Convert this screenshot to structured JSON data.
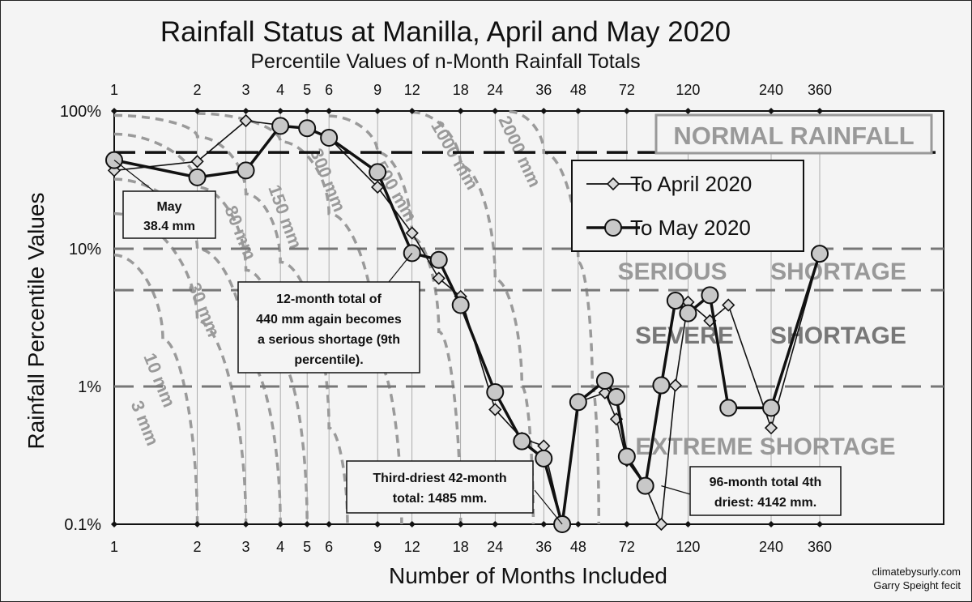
{
  "title": "Rainfall Status at Manilla, April and May 2020",
  "subtitle": "Percentile Values of n-Month Rainfall Totals",
  "credit": [
    "climatebysurly.com",
    "Garry Speight fecit"
  ],
  "colors": {
    "background": "#f4f4f4",
    "series": "#111111",
    "marker_fill": "#c8c8c8",
    "contour": "#9a9a9a",
    "band_line": "#777777",
    "band_text": "#999999",
    "normal_line": "#111111"
  },
  "chart_data": {
    "type": "line",
    "title": "Rainfall Status at Manilla, April and May 2020",
    "subtitle": "Percentile Values of n-Month Rainfall Totals",
    "xlabel": "Number of Months Included",
    "ylabel": "Rainfall Percentile Values",
    "x_scale": "log",
    "y_scale": "log",
    "xlim": [
      1,
      360
    ],
    "ylim": [
      0.1,
      100
    ],
    "x_ticks": [
      1,
      2,
      3,
      4,
      5,
      6,
      9,
      12,
      18,
      24,
      36,
      48,
      72,
      120,
      240,
      360
    ],
    "x_top_ticks": [
      1,
      2,
      3,
      4,
      5,
      6,
      9,
      12,
      18,
      24,
      36,
      48,
      72,
      120,
      240,
      360
    ],
    "y_ticks": [
      "0.1%",
      "1%",
      "10%",
      "100%"
    ],
    "y_tick_values": [
      0.1,
      1,
      10,
      100
    ],
    "grid": false,
    "legend_position": "top-right",
    "series": [
      {
        "name": "To April 2020",
        "marker": "diamond",
        "points": [
          [
            1,
            37
          ],
          [
            2,
            43
          ],
          [
            3,
            85
          ],
          [
            4,
            79
          ],
          [
            5,
            74
          ],
          [
            6,
            64
          ],
          [
            9,
            28
          ],
          [
            12,
            13
          ],
          [
            15,
            6.1
          ],
          [
            18,
            4.5
          ],
          [
            24,
            0.68
          ],
          [
            30,
            0.42
          ],
          [
            36,
            0.37
          ],
          [
            42,
            0.1
          ],
          [
            48,
            0.77
          ],
          [
            60,
            0.9
          ],
          [
            66,
            0.58
          ],
          [
            72,
            0.29
          ],
          [
            84,
            0.19
          ],
          [
            96,
            0.1
          ],
          [
            108,
            1.02
          ],
          [
            120,
            4.1
          ],
          [
            144,
            3.0
          ],
          [
            168,
            3.9
          ],
          [
            240,
            0.5
          ],
          [
            360,
            9.2
          ]
        ]
      },
      {
        "name": "To May 2020",
        "marker": "circle",
        "points": [
          [
            1,
            44
          ],
          [
            2,
            33
          ],
          [
            3,
            37
          ],
          [
            4,
            78
          ],
          [
            5,
            75
          ],
          [
            6,
            64
          ],
          [
            9,
            36
          ],
          [
            12,
            9.3
          ],
          [
            15,
            8.3
          ],
          [
            18,
            3.9
          ],
          [
            24,
            0.91
          ],
          [
            30,
            0.4
          ],
          [
            36,
            0.3
          ],
          [
            42,
            0.1
          ],
          [
            48,
            0.77
          ],
          [
            60,
            1.1
          ],
          [
            66,
            0.84
          ],
          [
            72,
            0.31
          ],
          [
            84,
            0.19
          ],
          [
            96,
            1.02
          ],
          [
            108,
            4.2
          ],
          [
            120,
            3.4
          ],
          [
            144,
            4.6
          ],
          [
            168,
            0.7
          ],
          [
            240,
            0.7
          ],
          [
            360,
            9.2
          ]
        ]
      }
    ],
    "reference_lines": [
      {
        "name": "normal",
        "y": 50,
        "label": "NORMAL RAINFALL"
      },
      {
        "name": "serious",
        "y": 10,
        "label": "SERIOUS      SHORTAGE"
      },
      {
        "name": "severe",
        "y": 5,
        "label": "SEVERE      SHORTAGE"
      },
      {
        "name": "extreme",
        "y": 1,
        "label": "EXTREME SHORTAGE"
      }
    ],
    "contours": [
      {
        "label": "3 mm",
        "points": [
          [
            1,
            9
          ],
          [
            1.5,
            2.2
          ],
          [
            2,
            0.1
          ]
        ]
      },
      {
        "label": "10 mm",
        "points": [
          [
            1,
            18
          ],
          [
            2,
            3.0
          ],
          [
            3,
            0.1
          ]
        ]
      },
      {
        "label": "30 mm",
        "points": [
          [
            1,
            32
          ],
          [
            2,
            10
          ],
          [
            3,
            1.6
          ],
          [
            4,
            0.1
          ]
        ]
      },
      {
        "label": "80 mm",
        "points": [
          [
            1,
            68
          ],
          [
            2,
            28
          ],
          [
            3,
            7
          ],
          [
            4,
            1.5
          ],
          [
            5,
            0.1
          ]
        ]
      },
      {
        "label": "150 mm",
        "points": [
          [
            1,
            93
          ],
          [
            2,
            65
          ],
          [
            3,
            25
          ],
          [
            4,
            8
          ],
          [
            6,
            0.5
          ],
          [
            7,
            0.1
          ]
        ]
      },
      {
        "label": "300 mm",
        "points": [
          [
            2,
            96
          ],
          [
            4,
            60
          ],
          [
            6,
            18
          ],
          [
            9,
            1.5
          ],
          [
            11,
            0.1
          ]
        ]
      },
      {
        "label": "500 mm",
        "points": [
          [
            6,
            92
          ],
          [
            9,
            50
          ],
          [
            12,
            12
          ],
          [
            15,
            2.5
          ],
          [
            18,
            0.1
          ]
        ]
      },
      {
        "label": "1000 mm",
        "points": [
          [
            12,
            98
          ],
          [
            18,
            40
          ],
          [
            24,
            6
          ],
          [
            30,
            1.0
          ],
          [
            33,
            0.1
          ]
        ]
      },
      {
        "label": "2000 mm",
        "points": [
          [
            27,
            99
          ],
          [
            36,
            50
          ],
          [
            48,
            8
          ],
          [
            54,
            1.0
          ],
          [
            57,
            0.1
          ]
        ]
      }
    ],
    "annotations": [
      {
        "text": "May\n38.4 mm",
        "target": [
          1,
          44
        ]
      },
      {
        "text": "12-month total of\n440 mm again becomes\na serious shortage (9th\npercentile).",
        "target": [
          12,
          9.3
        ]
      },
      {
        "text": "Third-driest 42-month\ntotal: 1485 mm.",
        "target": [
          42,
          0.1
        ]
      },
      {
        "text": "96-month total 4th\ndriest: 4142 mm.",
        "target": [
          96,
          0.19
        ]
      }
    ]
  }
}
